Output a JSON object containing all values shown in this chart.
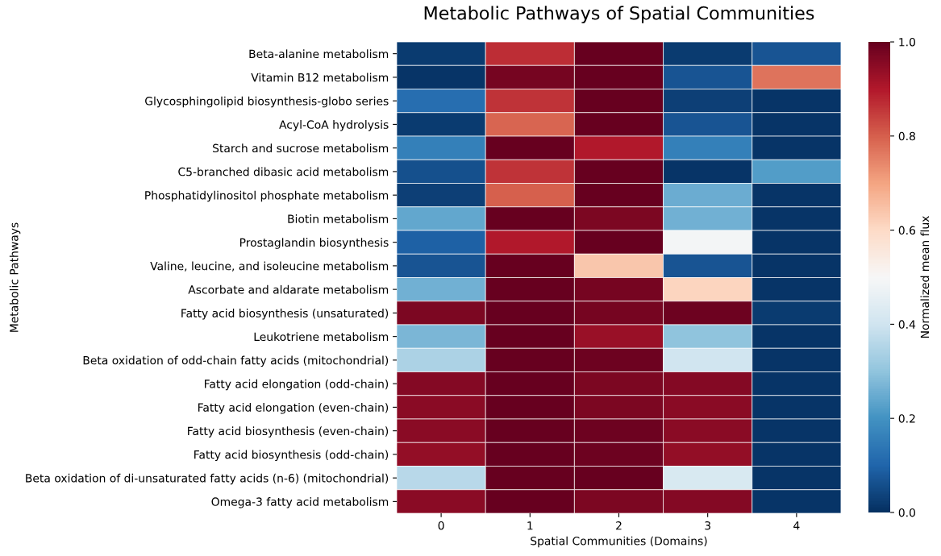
{
  "chart_data": {
    "type": "heatmap",
    "title": "Metabolic Pathways of Spatial Communities",
    "xlabel": "Spatial Communities (Domains)",
    "ylabel": "Metabolic Pathways",
    "clabel": "Normalized mean flux",
    "categories": [
      "0",
      "1",
      "2",
      "3",
      "4"
    ],
    "y_categories": [
      "Beta-alanine metabolism",
      "Vitamin B12 metabolism",
      "Glycosphingolipid biosynthesis-globo series",
      "Acyl-CoA hydrolysis",
      "Starch and sucrose metabolism",
      "C5-branched dibasic acid metabolism",
      "Phosphatidylinositol phosphate metabolism",
      "Biotin metabolism",
      "Prostaglandin biosynthesis",
      "Valine, leucine, and isoleucine metabolism",
      "Ascorbate and aldarate metabolism",
      "Fatty acid biosynthesis (unsaturated)",
      "Leukotriene metabolism",
      "Beta oxidation of odd-chain fatty acids (mitochondrial)",
      "Fatty acid elongation (odd-chain)",
      "Fatty acid elongation (even-chain)",
      "Fatty acid biosynthesis (even-chain)",
      "Fatty acid biosynthesis (odd-chain)",
      "Beta oxidation of di-unsaturated fatty acids (n-6) (mitochondrial)",
      "Omega-3 fatty acid metabolism"
    ],
    "cells": [
      [
        0.02,
        0.87,
        1.0,
        0.02,
        0.07
      ],
      [
        0.01,
        0.98,
        1.0,
        0.07,
        0.77
      ],
      [
        0.12,
        0.86,
        1.0,
        0.03,
        0.01
      ],
      [
        0.02,
        0.79,
        1.0,
        0.07,
        0.01
      ],
      [
        0.16,
        1.0,
        0.9,
        0.16,
        0.01
      ],
      [
        0.06,
        0.86,
        1.0,
        0.01,
        0.22
      ],
      [
        0.03,
        0.8,
        1.0,
        0.25,
        0.01
      ],
      [
        0.24,
        1.0,
        0.97,
        0.26,
        0.01
      ],
      [
        0.09,
        0.9,
        1.0,
        0.49,
        0.01
      ],
      [
        0.07,
        1.0,
        0.64,
        0.07,
        0.01
      ],
      [
        0.26,
        1.0,
        0.98,
        0.61,
        0.01
      ],
      [
        0.97,
        1.0,
        0.98,
        0.99,
        0.02
      ],
      [
        0.27,
        1.0,
        0.93,
        0.3,
        0.01
      ],
      [
        0.34,
        1.0,
        0.99,
        0.4,
        0.01
      ],
      [
        0.96,
        1.0,
        0.97,
        0.96,
        0.01
      ],
      [
        0.95,
        1.0,
        0.97,
        0.95,
        0.01
      ],
      [
        0.95,
        1.0,
        0.99,
        0.95,
        0.01
      ],
      [
        0.94,
        1.0,
        0.99,
        0.94,
        0.01
      ],
      [
        0.36,
        1.0,
        1.0,
        0.42,
        0.01
      ],
      [
        0.95,
        1.0,
        0.97,
        0.96,
        0.01
      ]
    ],
    "clim": [
      0,
      1
    ],
    "cticks": [
      {
        "value": 0,
        "label": "0.0"
      },
      {
        "value": 0.2,
        "label": "0.2"
      },
      {
        "value": 0.4,
        "label": "0.4"
      },
      {
        "value": 0.6,
        "label": "0.6"
      },
      {
        "value": 0.8,
        "label": "0.8"
      },
      {
        "value": 1,
        "label": "1.0"
      }
    ]
  }
}
